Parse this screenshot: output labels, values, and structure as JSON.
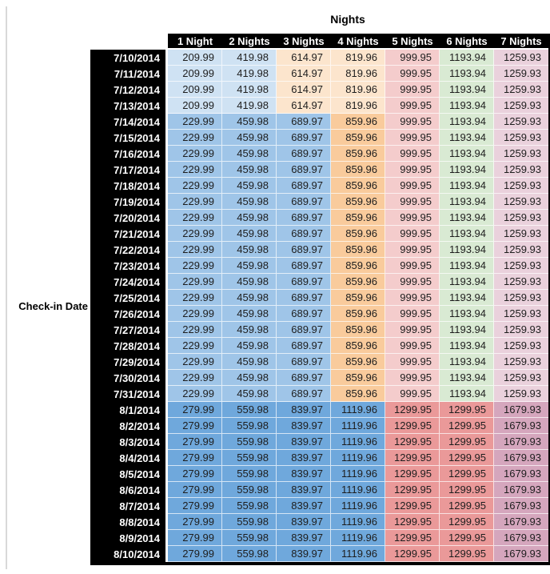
{
  "chart_data": {
    "type": "table",
    "title": "Nights",
    "row_axis_label": "Check-in Date",
    "columns": [
      "1 Night",
      "2 Nights",
      "3 Nights",
      "4 Nights",
      "5 Nights",
      "6 Nights",
      "7 Nights"
    ],
    "rows": [
      {
        "date": "7/10/2014",
        "band": "early",
        "values": [
          209.99,
          419.98,
          614.97,
          819.96,
          999.95,
          1193.94,
          1259.93
        ]
      },
      {
        "date": "7/11/2014",
        "band": "early",
        "values": [
          209.99,
          419.98,
          614.97,
          819.96,
          999.95,
          1193.94,
          1259.93
        ]
      },
      {
        "date": "7/12/2014",
        "band": "early",
        "values": [
          209.99,
          419.98,
          614.97,
          819.96,
          999.95,
          1193.94,
          1259.93
        ]
      },
      {
        "date": "7/13/2014",
        "band": "early",
        "values": [
          209.99,
          419.98,
          614.97,
          819.96,
          999.95,
          1193.94,
          1259.93
        ]
      },
      {
        "date": "7/14/2014",
        "band": "mid",
        "values": [
          229.99,
          459.98,
          689.97,
          859.96,
          999.95,
          1193.94,
          1259.93
        ]
      },
      {
        "date": "7/15/2014",
        "band": "mid",
        "values": [
          229.99,
          459.98,
          689.97,
          859.96,
          999.95,
          1193.94,
          1259.93
        ]
      },
      {
        "date": "7/16/2014",
        "band": "mid",
        "values": [
          229.99,
          459.98,
          689.97,
          859.96,
          999.95,
          1193.94,
          1259.93
        ]
      },
      {
        "date": "7/17/2014",
        "band": "mid",
        "values": [
          229.99,
          459.98,
          689.97,
          859.96,
          999.95,
          1193.94,
          1259.93
        ]
      },
      {
        "date": "7/18/2014",
        "band": "mid",
        "values": [
          229.99,
          459.98,
          689.97,
          859.96,
          999.95,
          1193.94,
          1259.93
        ]
      },
      {
        "date": "7/19/2014",
        "band": "mid",
        "values": [
          229.99,
          459.98,
          689.97,
          859.96,
          999.95,
          1193.94,
          1259.93
        ]
      },
      {
        "date": "7/20/2014",
        "band": "mid",
        "values": [
          229.99,
          459.98,
          689.97,
          859.96,
          999.95,
          1193.94,
          1259.93
        ]
      },
      {
        "date": "7/21/2014",
        "band": "mid",
        "values": [
          229.99,
          459.98,
          689.97,
          859.96,
          999.95,
          1193.94,
          1259.93
        ]
      },
      {
        "date": "7/22/2014",
        "band": "mid",
        "values": [
          229.99,
          459.98,
          689.97,
          859.96,
          999.95,
          1193.94,
          1259.93
        ]
      },
      {
        "date": "7/23/2014",
        "band": "mid",
        "values": [
          229.99,
          459.98,
          689.97,
          859.96,
          999.95,
          1193.94,
          1259.93
        ]
      },
      {
        "date": "7/24/2014",
        "band": "mid",
        "values": [
          229.99,
          459.98,
          689.97,
          859.96,
          999.95,
          1193.94,
          1259.93
        ]
      },
      {
        "date": "7/25/2014",
        "band": "mid",
        "values": [
          229.99,
          459.98,
          689.97,
          859.96,
          999.95,
          1193.94,
          1259.93
        ]
      },
      {
        "date": "7/26/2014",
        "band": "mid",
        "values": [
          229.99,
          459.98,
          689.97,
          859.96,
          999.95,
          1193.94,
          1259.93
        ]
      },
      {
        "date": "7/27/2014",
        "band": "mid",
        "values": [
          229.99,
          459.98,
          689.97,
          859.96,
          999.95,
          1193.94,
          1259.93
        ]
      },
      {
        "date": "7/28/2014",
        "band": "mid",
        "values": [
          229.99,
          459.98,
          689.97,
          859.96,
          999.95,
          1193.94,
          1259.93
        ]
      },
      {
        "date": "7/29/2014",
        "band": "mid",
        "values": [
          229.99,
          459.98,
          689.97,
          859.96,
          999.95,
          1193.94,
          1259.93
        ]
      },
      {
        "date": "7/30/2014",
        "band": "mid",
        "values": [
          229.99,
          459.98,
          689.97,
          859.96,
          999.95,
          1193.94,
          1259.93
        ]
      },
      {
        "date": "7/31/2014",
        "band": "mid",
        "values": [
          229.99,
          459.98,
          689.97,
          859.96,
          999.95,
          1193.94,
          1259.93
        ]
      },
      {
        "date": "8/1/2014",
        "band": "late",
        "values": [
          279.99,
          559.98,
          839.97,
          1119.96,
          1299.95,
          1299.95,
          1679.93
        ]
      },
      {
        "date": "8/2/2014",
        "band": "late",
        "values": [
          279.99,
          559.98,
          839.97,
          1119.96,
          1299.95,
          1299.95,
          1679.93
        ]
      },
      {
        "date": "8/3/2014",
        "band": "late",
        "values": [
          279.99,
          559.98,
          839.97,
          1119.96,
          1299.95,
          1299.95,
          1679.93
        ]
      },
      {
        "date": "8/4/2014",
        "band": "late",
        "values": [
          279.99,
          559.98,
          839.97,
          1119.96,
          1299.95,
          1299.95,
          1679.93
        ]
      },
      {
        "date": "8/5/2014",
        "band": "late",
        "values": [
          279.99,
          559.98,
          839.97,
          1119.96,
          1299.95,
          1299.95,
          1679.93
        ]
      },
      {
        "date": "8/6/2014",
        "band": "late",
        "values": [
          279.99,
          559.98,
          839.97,
          1119.96,
          1299.95,
          1299.95,
          1679.93
        ]
      },
      {
        "date": "8/7/2014",
        "band": "late",
        "values": [
          279.99,
          559.98,
          839.97,
          1119.96,
          1299.95,
          1299.95,
          1679.93
        ]
      },
      {
        "date": "8/8/2014",
        "band": "late",
        "values": [
          279.99,
          559.98,
          839.97,
          1119.96,
          1299.95,
          1299.95,
          1679.93
        ]
      },
      {
        "date": "8/9/2014",
        "band": "late",
        "values": [
          279.99,
          559.98,
          839.97,
          1119.96,
          1299.95,
          1299.95,
          1679.93
        ]
      },
      {
        "date": "8/10/2014",
        "band": "late",
        "values": [
          279.99,
          559.98,
          839.97,
          1119.96,
          1299.95,
          1299.95,
          1679.93
        ]
      }
    ]
  },
  "colors": {
    "header_bg": "#000000",
    "header_text": "#ffffff",
    "cell_text": "#1e1e1e",
    "bands": {
      "early": [
        "#cfe2f3",
        "#cfe2f3",
        "#fce5cd",
        "#fce5cd",
        "#f4cccc",
        "#d9ead3",
        "#ead1dc"
      ],
      "mid": [
        "#9fc5e8",
        "#9fc5e8",
        "#9fc5e8",
        "#f9cb9c",
        "#f4cccc",
        "#d9ead3",
        "#ead1dc"
      ],
      "late": [
        "#6fa8dc",
        "#6fa8dc",
        "#6fa8dc",
        "#6fa8dc",
        "#ea9999",
        "#ea9999",
        "#d5a6bd"
      ]
    }
  }
}
